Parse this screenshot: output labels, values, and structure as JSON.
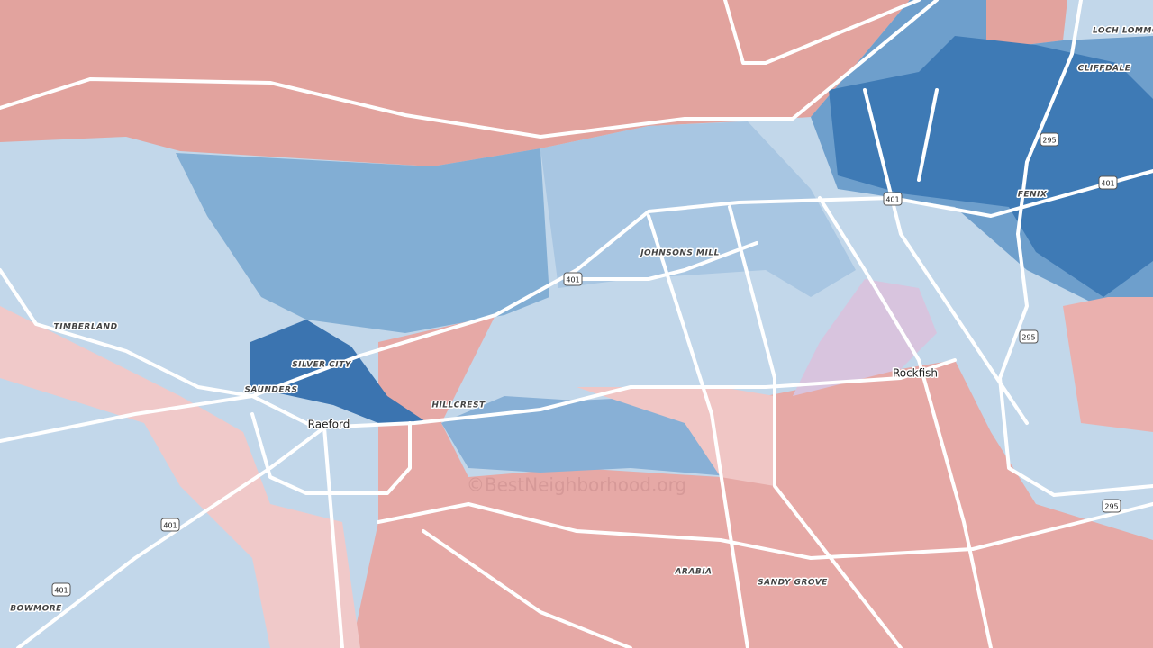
{
  "places": [
    {
      "label": "LOCH LOMMO"
    },
    {
      "label": "CLIFFDALE"
    },
    {
      "label": "FENIX"
    },
    {
      "label": "JOHNSONS MILL"
    },
    {
      "label": "TIMBERLAND"
    },
    {
      "label": "SILVER CITY"
    },
    {
      "label": "SAUNDERS"
    },
    {
      "label": "Raeford"
    },
    {
      "label": "HILLCREST"
    },
    {
      "label": "Rockfish"
    },
    {
      "label": "ARABIA"
    },
    {
      "label": "SANDY GROVE"
    },
    {
      "label": "BOWMORE"
    }
  ],
  "shields": [
    {
      "label": "295"
    },
    {
      "label": "295"
    },
    {
      "label": "295"
    },
    {
      "label": "401"
    },
    {
      "label": "401"
    },
    {
      "label": "401"
    },
    {
      "label": "401"
    },
    {
      "label": "401"
    }
  ],
  "watermark": "©BestNeighborhood.org"
}
